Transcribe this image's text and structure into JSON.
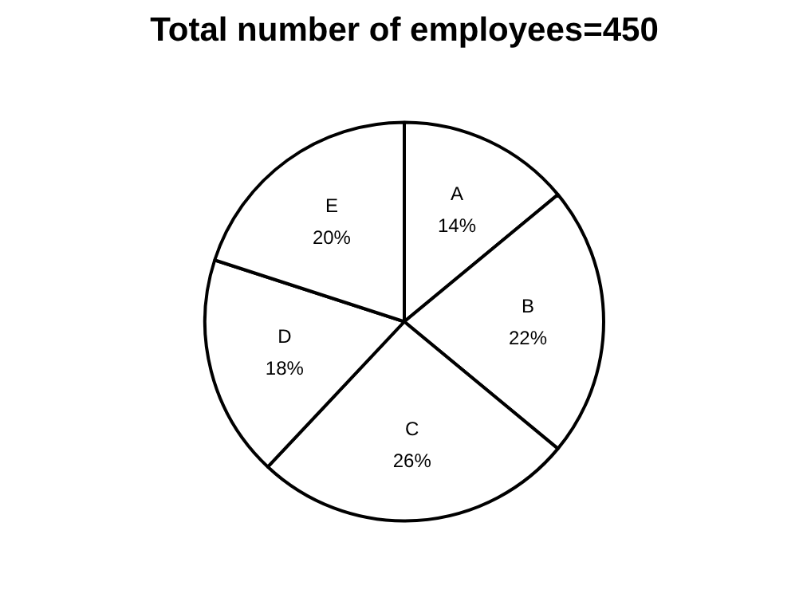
{
  "chart_data": {
    "type": "pie",
    "title": "Total number of employees=450",
    "categories": [
      "A",
      "B",
      "C",
      "D",
      "E"
    ],
    "values": [
      14,
      22,
      26,
      18,
      20
    ],
    "colors": [
      "#ffffff",
      "#ffffff",
      "#ffffff",
      "#ffffff",
      "#ffffff"
    ],
    "value_labels": [
      "14%",
      "22%",
      "26%",
      "18%",
      "20%"
    ]
  }
}
